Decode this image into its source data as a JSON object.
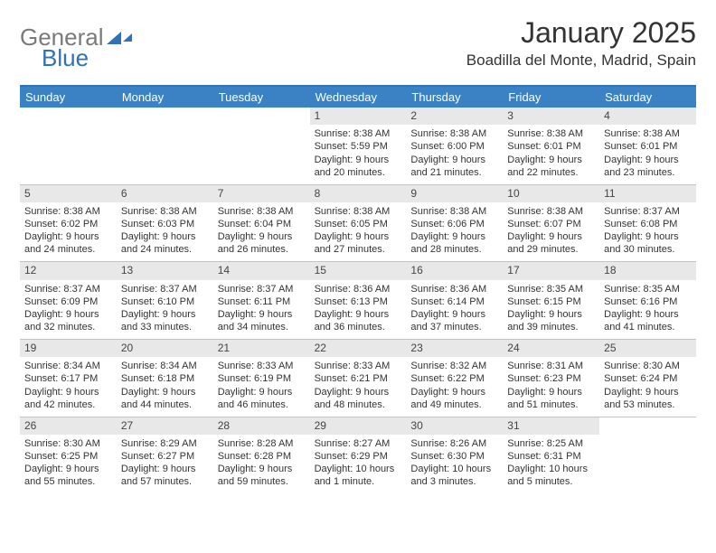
{
  "logo": {
    "text_gray": "General",
    "text_blue": "Blue"
  },
  "title": "January 2025",
  "location": "Boadilla del Monte, Madrid, Spain",
  "colors": {
    "header_bar": "#3b82c4",
    "day_bg": "#e8e8e8",
    "text": "#333333",
    "rule": "#2f72b8"
  },
  "daynames": [
    "Sunday",
    "Monday",
    "Tuesday",
    "Wednesday",
    "Thursday",
    "Friday",
    "Saturday"
  ],
  "weeks": [
    [
      {
        "n": "",
        "empty": true
      },
      {
        "n": "",
        "empty": true
      },
      {
        "n": "",
        "empty": true
      },
      {
        "n": "1",
        "sunrise": "Sunrise: 8:38 AM",
        "sunset": "Sunset: 5:59 PM",
        "dl1": "Daylight: 9 hours",
        "dl2": "and 20 minutes."
      },
      {
        "n": "2",
        "sunrise": "Sunrise: 8:38 AM",
        "sunset": "Sunset: 6:00 PM",
        "dl1": "Daylight: 9 hours",
        "dl2": "and 21 minutes."
      },
      {
        "n": "3",
        "sunrise": "Sunrise: 8:38 AM",
        "sunset": "Sunset: 6:01 PM",
        "dl1": "Daylight: 9 hours",
        "dl2": "and 22 minutes."
      },
      {
        "n": "4",
        "sunrise": "Sunrise: 8:38 AM",
        "sunset": "Sunset: 6:01 PM",
        "dl1": "Daylight: 9 hours",
        "dl2": "and 23 minutes."
      }
    ],
    [
      {
        "n": "5",
        "sunrise": "Sunrise: 8:38 AM",
        "sunset": "Sunset: 6:02 PM",
        "dl1": "Daylight: 9 hours",
        "dl2": "and 24 minutes."
      },
      {
        "n": "6",
        "sunrise": "Sunrise: 8:38 AM",
        "sunset": "Sunset: 6:03 PM",
        "dl1": "Daylight: 9 hours",
        "dl2": "and 24 minutes."
      },
      {
        "n": "7",
        "sunrise": "Sunrise: 8:38 AM",
        "sunset": "Sunset: 6:04 PM",
        "dl1": "Daylight: 9 hours",
        "dl2": "and 26 minutes."
      },
      {
        "n": "8",
        "sunrise": "Sunrise: 8:38 AM",
        "sunset": "Sunset: 6:05 PM",
        "dl1": "Daylight: 9 hours",
        "dl2": "and 27 minutes."
      },
      {
        "n": "9",
        "sunrise": "Sunrise: 8:38 AM",
        "sunset": "Sunset: 6:06 PM",
        "dl1": "Daylight: 9 hours",
        "dl2": "and 28 minutes."
      },
      {
        "n": "10",
        "sunrise": "Sunrise: 8:38 AM",
        "sunset": "Sunset: 6:07 PM",
        "dl1": "Daylight: 9 hours",
        "dl2": "and 29 minutes."
      },
      {
        "n": "11",
        "sunrise": "Sunrise: 8:37 AM",
        "sunset": "Sunset: 6:08 PM",
        "dl1": "Daylight: 9 hours",
        "dl2": "and 30 minutes."
      }
    ],
    [
      {
        "n": "12",
        "sunrise": "Sunrise: 8:37 AM",
        "sunset": "Sunset: 6:09 PM",
        "dl1": "Daylight: 9 hours",
        "dl2": "and 32 minutes."
      },
      {
        "n": "13",
        "sunrise": "Sunrise: 8:37 AM",
        "sunset": "Sunset: 6:10 PM",
        "dl1": "Daylight: 9 hours",
        "dl2": "and 33 minutes."
      },
      {
        "n": "14",
        "sunrise": "Sunrise: 8:37 AM",
        "sunset": "Sunset: 6:11 PM",
        "dl1": "Daylight: 9 hours",
        "dl2": "and 34 minutes."
      },
      {
        "n": "15",
        "sunrise": "Sunrise: 8:36 AM",
        "sunset": "Sunset: 6:13 PM",
        "dl1": "Daylight: 9 hours",
        "dl2": "and 36 minutes."
      },
      {
        "n": "16",
        "sunrise": "Sunrise: 8:36 AM",
        "sunset": "Sunset: 6:14 PM",
        "dl1": "Daylight: 9 hours",
        "dl2": "and 37 minutes."
      },
      {
        "n": "17",
        "sunrise": "Sunrise: 8:35 AM",
        "sunset": "Sunset: 6:15 PM",
        "dl1": "Daylight: 9 hours",
        "dl2": "and 39 minutes."
      },
      {
        "n": "18",
        "sunrise": "Sunrise: 8:35 AM",
        "sunset": "Sunset: 6:16 PM",
        "dl1": "Daylight: 9 hours",
        "dl2": "and 41 minutes."
      }
    ],
    [
      {
        "n": "19",
        "sunrise": "Sunrise: 8:34 AM",
        "sunset": "Sunset: 6:17 PM",
        "dl1": "Daylight: 9 hours",
        "dl2": "and 42 minutes."
      },
      {
        "n": "20",
        "sunrise": "Sunrise: 8:34 AM",
        "sunset": "Sunset: 6:18 PM",
        "dl1": "Daylight: 9 hours",
        "dl2": "and 44 minutes."
      },
      {
        "n": "21",
        "sunrise": "Sunrise: 8:33 AM",
        "sunset": "Sunset: 6:19 PM",
        "dl1": "Daylight: 9 hours",
        "dl2": "and 46 minutes."
      },
      {
        "n": "22",
        "sunrise": "Sunrise: 8:33 AM",
        "sunset": "Sunset: 6:21 PM",
        "dl1": "Daylight: 9 hours",
        "dl2": "and 48 minutes."
      },
      {
        "n": "23",
        "sunrise": "Sunrise: 8:32 AM",
        "sunset": "Sunset: 6:22 PM",
        "dl1": "Daylight: 9 hours",
        "dl2": "and 49 minutes."
      },
      {
        "n": "24",
        "sunrise": "Sunrise: 8:31 AM",
        "sunset": "Sunset: 6:23 PM",
        "dl1": "Daylight: 9 hours",
        "dl2": "and 51 minutes."
      },
      {
        "n": "25",
        "sunrise": "Sunrise: 8:30 AM",
        "sunset": "Sunset: 6:24 PM",
        "dl1": "Daylight: 9 hours",
        "dl2": "and 53 minutes."
      }
    ],
    [
      {
        "n": "26",
        "sunrise": "Sunrise: 8:30 AM",
        "sunset": "Sunset: 6:25 PM",
        "dl1": "Daylight: 9 hours",
        "dl2": "and 55 minutes."
      },
      {
        "n": "27",
        "sunrise": "Sunrise: 8:29 AM",
        "sunset": "Sunset: 6:27 PM",
        "dl1": "Daylight: 9 hours",
        "dl2": "and 57 minutes."
      },
      {
        "n": "28",
        "sunrise": "Sunrise: 8:28 AM",
        "sunset": "Sunset: 6:28 PM",
        "dl1": "Daylight: 9 hours",
        "dl2": "and 59 minutes."
      },
      {
        "n": "29",
        "sunrise": "Sunrise: 8:27 AM",
        "sunset": "Sunset: 6:29 PM",
        "dl1": "Daylight: 10 hours",
        "dl2": "and 1 minute."
      },
      {
        "n": "30",
        "sunrise": "Sunrise: 8:26 AM",
        "sunset": "Sunset: 6:30 PM",
        "dl1": "Daylight: 10 hours",
        "dl2": "and 3 minutes."
      },
      {
        "n": "31",
        "sunrise": "Sunrise: 8:25 AM",
        "sunset": "Sunset: 6:31 PM",
        "dl1": "Daylight: 10 hours",
        "dl2": "and 5 minutes."
      },
      {
        "n": "",
        "empty": true
      }
    ]
  ]
}
